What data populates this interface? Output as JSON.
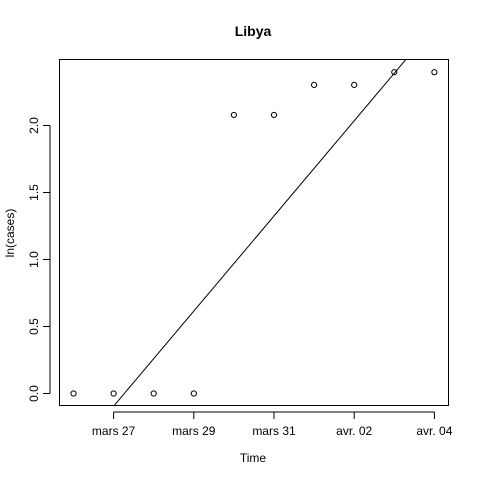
{
  "chart_data": {
    "type": "scatter",
    "title": "Libya",
    "xlabel": "Time",
    "ylabel": "ln(cases)",
    "x_ticks": [
      "mars 27",
      "mars 29",
      "mars 31",
      "avr. 02",
      "avr. 04"
    ],
    "y_ticks": [
      "0.0",
      "0.5",
      "1.0",
      "1.5",
      "2.0"
    ],
    "grid": false,
    "legend": "none",
    "xlim": [
      "2020-03-25",
      "2020-04-04"
    ],
    "ylim": [
      -0.1,
      2.4
    ],
    "points": [
      {
        "x": "2020-03-25",
        "y": 0.0
      },
      {
        "x": "2020-03-26",
        "y": 0.0
      },
      {
        "x": "2020-03-27",
        "y": 0.0
      },
      {
        "x": "2020-03-28",
        "y": 0.0
      },
      {
        "x": "2020-03-29",
        "y": 2.079
      },
      {
        "x": "2020-03-30",
        "y": 2.079
      },
      {
        "x": "2020-03-31",
        "y": 2.303
      },
      {
        "x": "2020-04-01",
        "y": 2.303
      },
      {
        "x": "2020-04-02",
        "y": 2.398
      },
      {
        "x": "2020-04-03",
        "y": 2.398
      }
    ],
    "fit_line": [
      {
        "x": "2020-03-25",
        "y": -0.45
      },
      {
        "x": "2020-04-04",
        "y": 3.1
      }
    ],
    "colors": {
      "points": "#000000",
      "line": "#000000",
      "axes": "#000000"
    }
  }
}
